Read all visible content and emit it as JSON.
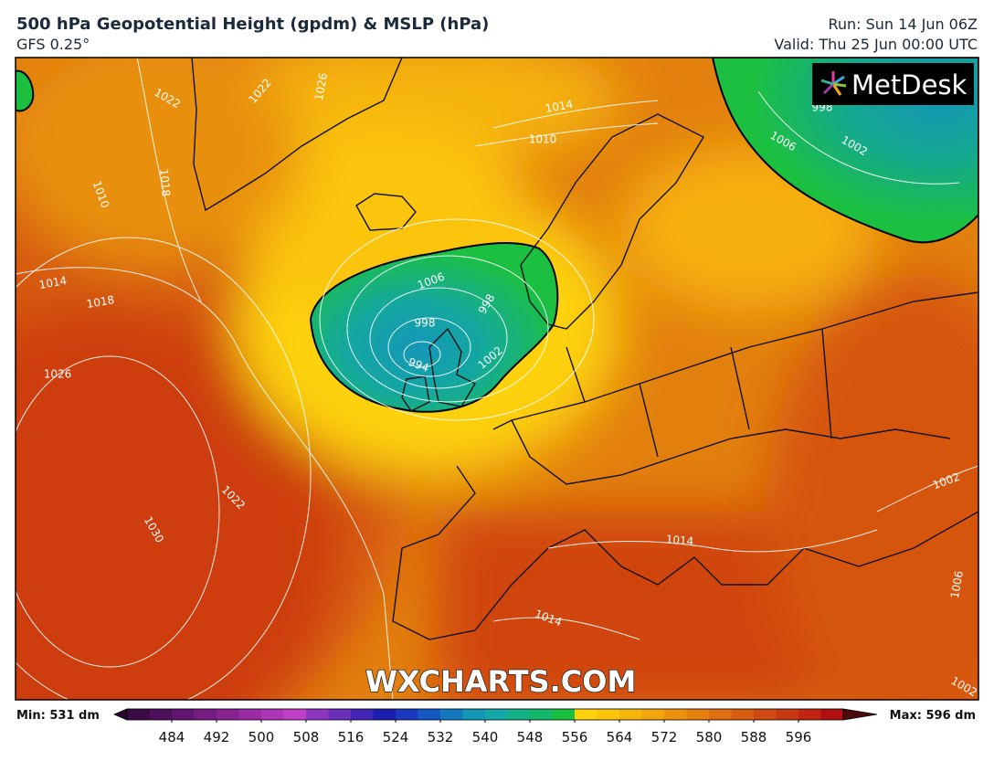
{
  "header": {
    "title": "500 hPa Geopotential Height (gpdm) & MSLP (hPa)",
    "model": "GFS 0.25°",
    "run": "Run: Sun 14 Jun 06Z",
    "valid": "Valid: Thu 25 Jun 00:00 UTC"
  },
  "logo": "MetDesk",
  "watermark": "WXCHARTS.COM",
  "contour_labels": [
    1022,
    1026,
    1022,
    1014,
    1010,
    1018,
    1010,
    1014,
    1018,
    1026,
    1006,
    998,
    994,
    1002,
    998,
    1022,
    1030,
    1014,
    1014,
    1002,
    1006,
    1002,
    998,
    1006,
    1002
  ],
  "colorbar": {
    "min_label": "Min: 531 dm",
    "max_label": "Max: 596 dm",
    "range": [
      476,
      604
    ],
    "ticks": [
      484,
      492,
      500,
      508,
      516,
      524,
      532,
      540,
      548,
      556,
      564,
      572,
      580,
      588,
      596
    ],
    "colors": [
      "#3b0a45",
      "#4e0f5c",
      "#611570",
      "#751b82",
      "#882293",
      "#9b2aa4",
      "#b034b8",
      "#c03fc6",
      "#8f36c0",
      "#6a2fbb",
      "#4226b5",
      "#1a1eb0",
      "#1838c0",
      "#1458c4",
      "#1478c0",
      "#1496b8",
      "#14a8a8",
      "#14b088",
      "#14b868",
      "#1cc040",
      "#fdd20a",
      "#fbc40a",
      "#f7b40a",
      "#f2a40a",
      "#ec920c",
      "#e6800e",
      "#de6e10",
      "#d65c10",
      "#ce4a10",
      "#c83810",
      "#c02410",
      "#b01010"
    ],
    "low_color": "#2a0530",
    "high_color": "#4a0a0a"
  }
}
